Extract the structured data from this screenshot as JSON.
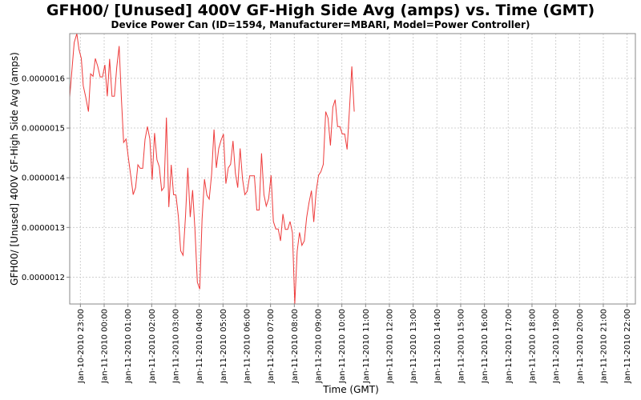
{
  "chart_data": {
    "type": "line",
    "title": "GFH00/ [Unused] 400V GF-High Side Avg (amps) vs. Time (GMT)",
    "subtitle": "Device Power Can (ID=1594, Manufacturer=MBARI, Model=Power Controller)",
    "xlabel": "Time (GMT)",
    "ylabel": "GFH00/ [Unused] 400V GF-High Side Avg (amps)",
    "xlim": [
      -0.45,
      23.35
    ],
    "ylim": [
      1.146e-06,
      1.69e-06
    ],
    "x_ticks": [
      {
        "pos": 0,
        "label": "Jan-10-2010 23:00"
      },
      {
        "pos": 1,
        "label": "Jan-11-2010 00:00"
      },
      {
        "pos": 2,
        "label": "Jan-11-2010 01:00"
      },
      {
        "pos": 3,
        "label": "Jan-11-2010 02:00"
      },
      {
        "pos": 4,
        "label": "Jan-11-2010 03:00"
      },
      {
        "pos": 5,
        "label": "Jan-11-2010 04:00"
      },
      {
        "pos": 6,
        "label": "Jan-11-2010 05:00"
      },
      {
        "pos": 7,
        "label": "Jan-11-2010 06:00"
      },
      {
        "pos": 8,
        "label": "Jan-11-2010 07:00"
      },
      {
        "pos": 9,
        "label": "Jan-11-2010 08:00"
      },
      {
        "pos": 10,
        "label": "Jan-11-2010 09:00"
      },
      {
        "pos": 11,
        "label": "Jan-11-2010 10:00"
      },
      {
        "pos": 12,
        "label": "Jan-11-2010 11:00"
      },
      {
        "pos": 13,
        "label": "Jan-11-2010 12:00"
      },
      {
        "pos": 14,
        "label": "Jan-11-2010 13:00"
      },
      {
        "pos": 15,
        "label": "Jan-11-2010 14:00"
      },
      {
        "pos": 16,
        "label": "Jan-11-2010 15:00"
      },
      {
        "pos": 17,
        "label": "Jan-11-2010 16:00"
      },
      {
        "pos": 18,
        "label": "Jan-11-2010 17:00"
      },
      {
        "pos": 19,
        "label": "Jan-11-2010 18:00"
      },
      {
        "pos": 20,
        "label": "Jan-11-2010 19:00"
      },
      {
        "pos": 21,
        "label": "Jan-11-2010 20:00"
      },
      {
        "pos": 22,
        "label": "Jan-11-2010 21:00"
      },
      {
        "pos": 23,
        "label": "Jan-11-2010 22:00"
      }
    ],
    "y_ticks": [
      {
        "value": 1.2e-06,
        "label": "0.0000012"
      },
      {
        "value": 1.3e-06,
        "label": "0.0000013"
      },
      {
        "value": 1.4e-06,
        "label": "0.0000014"
      },
      {
        "value": 1.5e-06,
        "label": "0.0000015"
      },
      {
        "value": 1.6e-06,
        "label": "0.0000016"
      }
    ],
    "grid": true,
    "legend": "none",
    "series": [
      {
        "color": "#ee3b3b",
        "points": [
          [
            -0.45,
            1.562e-06
          ],
          [
            -0.36,
            1.615e-06
          ],
          [
            -0.26,
            1.672e-06
          ],
          [
            -0.15,
            1.69e-06
          ],
          [
            -0.06,
            1.658e-06
          ],
          [
            0.04,
            1.64e-06
          ],
          [
            0.12,
            1.585e-06
          ],
          [
            0.22,
            1.563e-06
          ],
          [
            0.34,
            1.533e-06
          ],
          [
            0.43,
            1.609e-06
          ],
          [
            0.53,
            1.604e-06
          ],
          [
            0.63,
            1.64e-06
          ],
          [
            0.73,
            1.624e-06
          ],
          [
            0.83,
            1.603e-06
          ],
          [
            0.93,
            1.603e-06
          ],
          [
            1.03,
            1.627e-06
          ],
          [
            1.13,
            1.564e-06
          ],
          [
            1.23,
            1.639e-06
          ],
          [
            1.33,
            1.564e-06
          ],
          [
            1.43,
            1.564e-06
          ],
          [
            1.53,
            1.622e-06
          ],
          [
            1.63,
            1.665e-06
          ],
          [
            1.72,
            1.563e-06
          ],
          [
            1.82,
            1.471e-06
          ],
          [
            1.92,
            1.478e-06
          ],
          [
            2.02,
            1.439e-06
          ],
          [
            2.12,
            1.404e-06
          ],
          [
            2.22,
            1.366e-06
          ],
          [
            2.32,
            1.38e-06
          ],
          [
            2.42,
            1.426e-06
          ],
          [
            2.52,
            1.419e-06
          ],
          [
            2.62,
            1.419e-06
          ],
          [
            2.72,
            1.477e-06
          ],
          [
            2.82,
            1.503e-06
          ],
          [
            2.92,
            1.478e-06
          ],
          [
            3.02,
            1.396e-06
          ],
          [
            3.12,
            1.49e-06
          ],
          [
            3.22,
            1.436e-06
          ],
          [
            3.32,
            1.422e-06
          ],
          [
            3.42,
            1.374e-06
          ],
          [
            3.52,
            1.381e-06
          ],
          [
            3.62,
            1.521e-06
          ],
          [
            3.72,
            1.341e-06
          ],
          [
            3.82,
            1.426e-06
          ],
          [
            3.92,
            1.366e-06
          ],
          [
            4.02,
            1.365e-06
          ],
          [
            4.12,
            1.322e-06
          ],
          [
            4.22,
            1.253e-06
          ],
          [
            4.32,
            1.244e-06
          ],
          [
            4.42,
            1.322e-06
          ],
          [
            4.52,
            1.42e-06
          ],
          [
            4.62,
            1.321e-06
          ],
          [
            4.72,
            1.375e-06
          ],
          [
            4.82,
            1.296e-06
          ],
          [
            4.92,
            1.19e-06
          ],
          [
            5.02,
            1.176e-06
          ],
          [
            5.12,
            1.317e-06
          ],
          [
            5.22,
            1.397e-06
          ],
          [
            5.32,
            1.365e-06
          ],
          [
            5.42,
            1.357e-06
          ],
          [
            5.52,
            1.407e-06
          ],
          [
            5.62,
            1.497e-06
          ],
          [
            5.72,
            1.42e-06
          ],
          [
            5.82,
            1.459e-06
          ],
          [
            5.92,
            1.476e-06
          ],
          [
            6.02,
            1.488e-06
          ],
          [
            6.12,
            1.388e-06
          ],
          [
            6.22,
            1.42e-06
          ],
          [
            6.32,
            1.427e-06
          ],
          [
            6.42,
            1.474e-06
          ],
          [
            6.52,
            1.409e-06
          ],
          [
            6.62,
            1.38e-06
          ],
          [
            6.72,
            1.459e-06
          ],
          [
            6.82,
            1.397e-06
          ],
          [
            6.92,
            1.366e-06
          ],
          [
            7.02,
            1.373e-06
          ],
          [
            7.12,
            1.404e-06
          ],
          [
            7.22,
            1.404e-06
          ],
          [
            7.32,
            1.404e-06
          ],
          [
            7.42,
            1.335e-06
          ],
          [
            7.52,
            1.335e-06
          ],
          [
            7.62,
            1.449e-06
          ],
          [
            7.72,
            1.366e-06
          ],
          [
            7.82,
            1.343e-06
          ],
          [
            7.92,
            1.358e-06
          ],
          [
            8.02,
            1.405e-06
          ],
          [
            8.12,
            1.312e-06
          ],
          [
            8.22,
            1.297e-06
          ],
          [
            8.32,
            1.297e-06
          ],
          [
            8.42,
            1.273e-06
          ],
          [
            8.52,
            1.327e-06
          ],
          [
            8.62,
            1.296e-06
          ],
          [
            8.72,
            1.296e-06
          ],
          [
            8.82,
            1.312e-06
          ],
          [
            8.92,
            1.289e-06
          ],
          [
            9.02,
            1.146e-06
          ],
          [
            9.12,
            1.252e-06
          ],
          [
            9.22,
            1.29e-06
          ],
          [
            9.32,
            1.264e-06
          ],
          [
            9.42,
            1.273e-06
          ],
          [
            9.52,
            1.32e-06
          ],
          [
            9.62,
            1.35e-06
          ],
          [
            9.72,
            1.374e-06
          ],
          [
            9.82,
            1.311e-06
          ],
          [
            9.92,
            1.373e-06
          ],
          [
            10.02,
            1.405e-06
          ],
          [
            10.12,
            1.412e-06
          ],
          [
            10.22,
            1.427e-06
          ],
          [
            10.32,
            1.533e-06
          ],
          [
            10.42,
            1.52e-06
          ],
          [
            10.52,
            1.465e-06
          ],
          [
            10.62,
            1.542e-06
          ],
          [
            10.72,
            1.557e-06
          ],
          [
            10.82,
            1.503e-06
          ],
          [
            10.92,
            1.503e-06
          ],
          [
            11.02,
            1.488e-06
          ],
          [
            11.12,
            1.488e-06
          ],
          [
            11.22,
            1.457e-06
          ],
          [
            11.32,
            1.536e-06
          ],
          [
            11.42,
            1.624e-06
          ],
          [
            11.52,
            1.533e-06
          ]
        ]
      }
    ]
  }
}
